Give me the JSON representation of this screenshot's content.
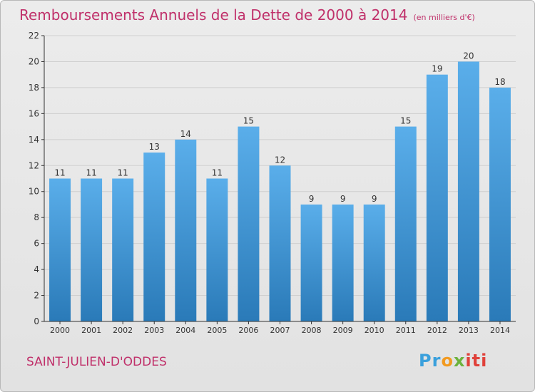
{
  "title": "Remboursements Annuels de la Dette de 2000 à 2014",
  "subtitle": "(en milliers d'€)",
  "commune": "SAINT-JULIEN-D'ODDES",
  "logo": {
    "p1": "Pr",
    "p2": "o",
    "p3": "x",
    "p4": "iti"
  },
  "colors": {
    "title": "#c0306a",
    "bar_top": "#5aaeea",
    "bar_bottom": "#2a7ab8",
    "axis": "#333333",
    "grid": "#cfcfcf"
  },
  "chart_data": {
    "type": "bar",
    "title": "Remboursements Annuels de la Dette de 2000 à 2014",
    "xlabel": "",
    "ylabel": "",
    "categories": [
      "2000",
      "2001",
      "2002",
      "2003",
      "2004",
      "2005",
      "2006",
      "2007",
      "2008",
      "2009",
      "2010",
      "2011",
      "2012",
      "2013",
      "2014"
    ],
    "values": [
      11,
      11,
      11,
      13,
      14,
      11,
      15,
      12,
      9,
      9,
      9,
      15,
      19,
      20,
      18
    ],
    "ylim": [
      0,
      22
    ],
    "yticks": [
      0,
      2,
      4,
      6,
      8,
      10,
      12,
      14,
      16,
      18,
      20,
      22
    ],
    "grid": true,
    "legend": "none"
  }
}
